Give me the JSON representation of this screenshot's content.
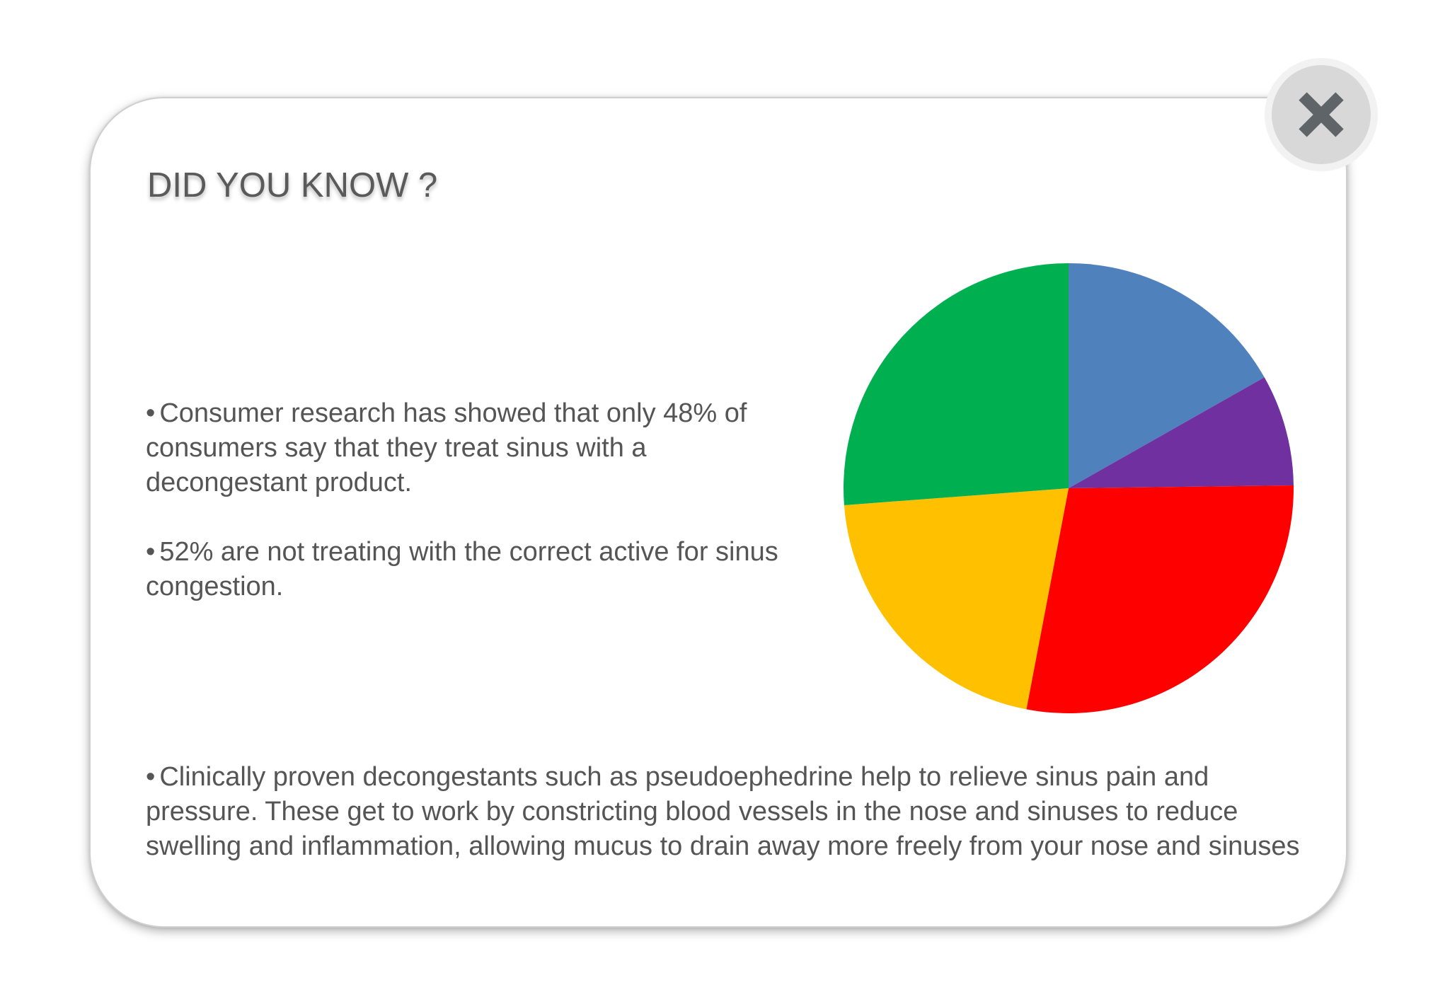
{
  "dialog": {
    "title": "DID YOU KNOW ?",
    "bullet_glyph": "•",
    "paragraphs": [
      "Consumer research has showed that only 48% of consumers say that they treat sinus with a decongestant product.",
      "52% are not treating with the correct active for sinus congestion.",
      "Clinically proven decongestants such as pseudoephedrine help to relieve sinus pain and pressure. These get to work by constricting blood vessels in the nose and sinuses to reduce swelling and inflammation, allowing mucus to drain away more freely from your nose and sinuses"
    ],
    "close_icon": "close-icon"
  },
  "colors": {
    "title": "#5a5a5a",
    "text": "#555555",
    "close_bg": "#d8d8d8",
    "close_glyph": "#5f6468"
  },
  "chart_data": {
    "type": "pie",
    "start_angle_deg": 0,
    "direction": "clockwise",
    "slices": [
      {
        "value": 16.8,
        "color": "#4f81bd"
      },
      {
        "value": 8.0,
        "color": "#7030a0"
      },
      {
        "value": 28.2,
        "color": "#ff0000"
      },
      {
        "value": 20.8,
        "color": "#ffc000"
      },
      {
        "value": 26.2,
        "color": "#00b050"
      }
    ]
  }
}
